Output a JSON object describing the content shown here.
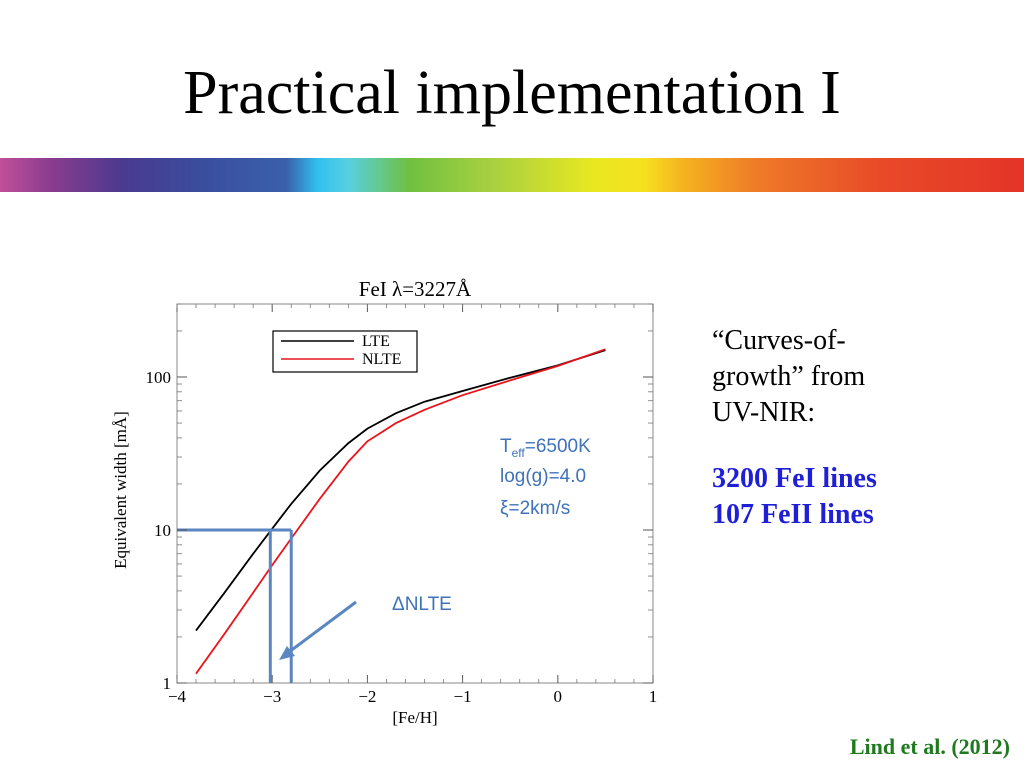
{
  "slide": {
    "title": "Practical implementation I",
    "note_lines": [
      "“Curves-of-",
      "growth” from",
      "UV-NIR:"
    ],
    "line_counts": [
      "3200 FeI lines",
      "107 FeII lines"
    ],
    "citation": "Lind et al. (2012)"
  },
  "chart_data": {
    "type": "line",
    "title": "FeI λ=3227Å",
    "xlabel": "[Fe/H]",
    "ylabel": "Equivalent width [mÅ]",
    "xlim": [
      -4,
      1
    ],
    "ylim": [
      1,
      300
    ],
    "yscale": "log",
    "xticks": [
      -4,
      -3,
      -2,
      -1,
      0,
      1
    ],
    "xtick_labels": [
      "−4",
      "−3",
      "−2",
      "−1",
      "0",
      "1"
    ],
    "yticks": [
      1,
      10,
      100
    ],
    "ytick_labels": [
      "1",
      "10",
      "100"
    ],
    "legend": {
      "position": "top-left",
      "entries": [
        "LTE",
        "NLTE"
      ]
    },
    "series": [
      {
        "name": "LTE",
        "color": "#000000",
        "x": [
          -3.8,
          -3.5,
          -3.2,
          -3.0,
          -2.8,
          -2.5,
          -2.2,
          -2.0,
          -1.7,
          -1.4,
          -1.0,
          -0.5,
          0.0,
          0.5
        ],
        "y": [
          2.2,
          3.9,
          7.0,
          10.2,
          14.8,
          24.5,
          37,
          46,
          58,
          69,
          81,
          99,
          119,
          150
        ]
      },
      {
        "name": "NLTE",
        "color": "#e8141c",
        "x": [
          -3.8,
          -3.5,
          -3.2,
          -3.0,
          -2.8,
          -2.5,
          -2.2,
          -2.0,
          -1.7,
          -1.4,
          -1.0,
          -0.5,
          0.0,
          0.5
        ],
        "y": [
          1.15,
          2.1,
          3.9,
          5.9,
          8.8,
          16.0,
          28,
          38,
          50,
          61,
          76,
          95,
          118,
          152
        ]
      }
    ],
    "annotations": {
      "params": [
        "T",
        "eff",
        "=6500K",
        "log(g)=4.0",
        "ξ=2km/s"
      ],
      "delta_label": "ΔNLTE",
      "ew_level": 10,
      "feh_lte": -3.02,
      "feh_nlte": -2.8,
      "color": "#5a86c2"
    }
  }
}
